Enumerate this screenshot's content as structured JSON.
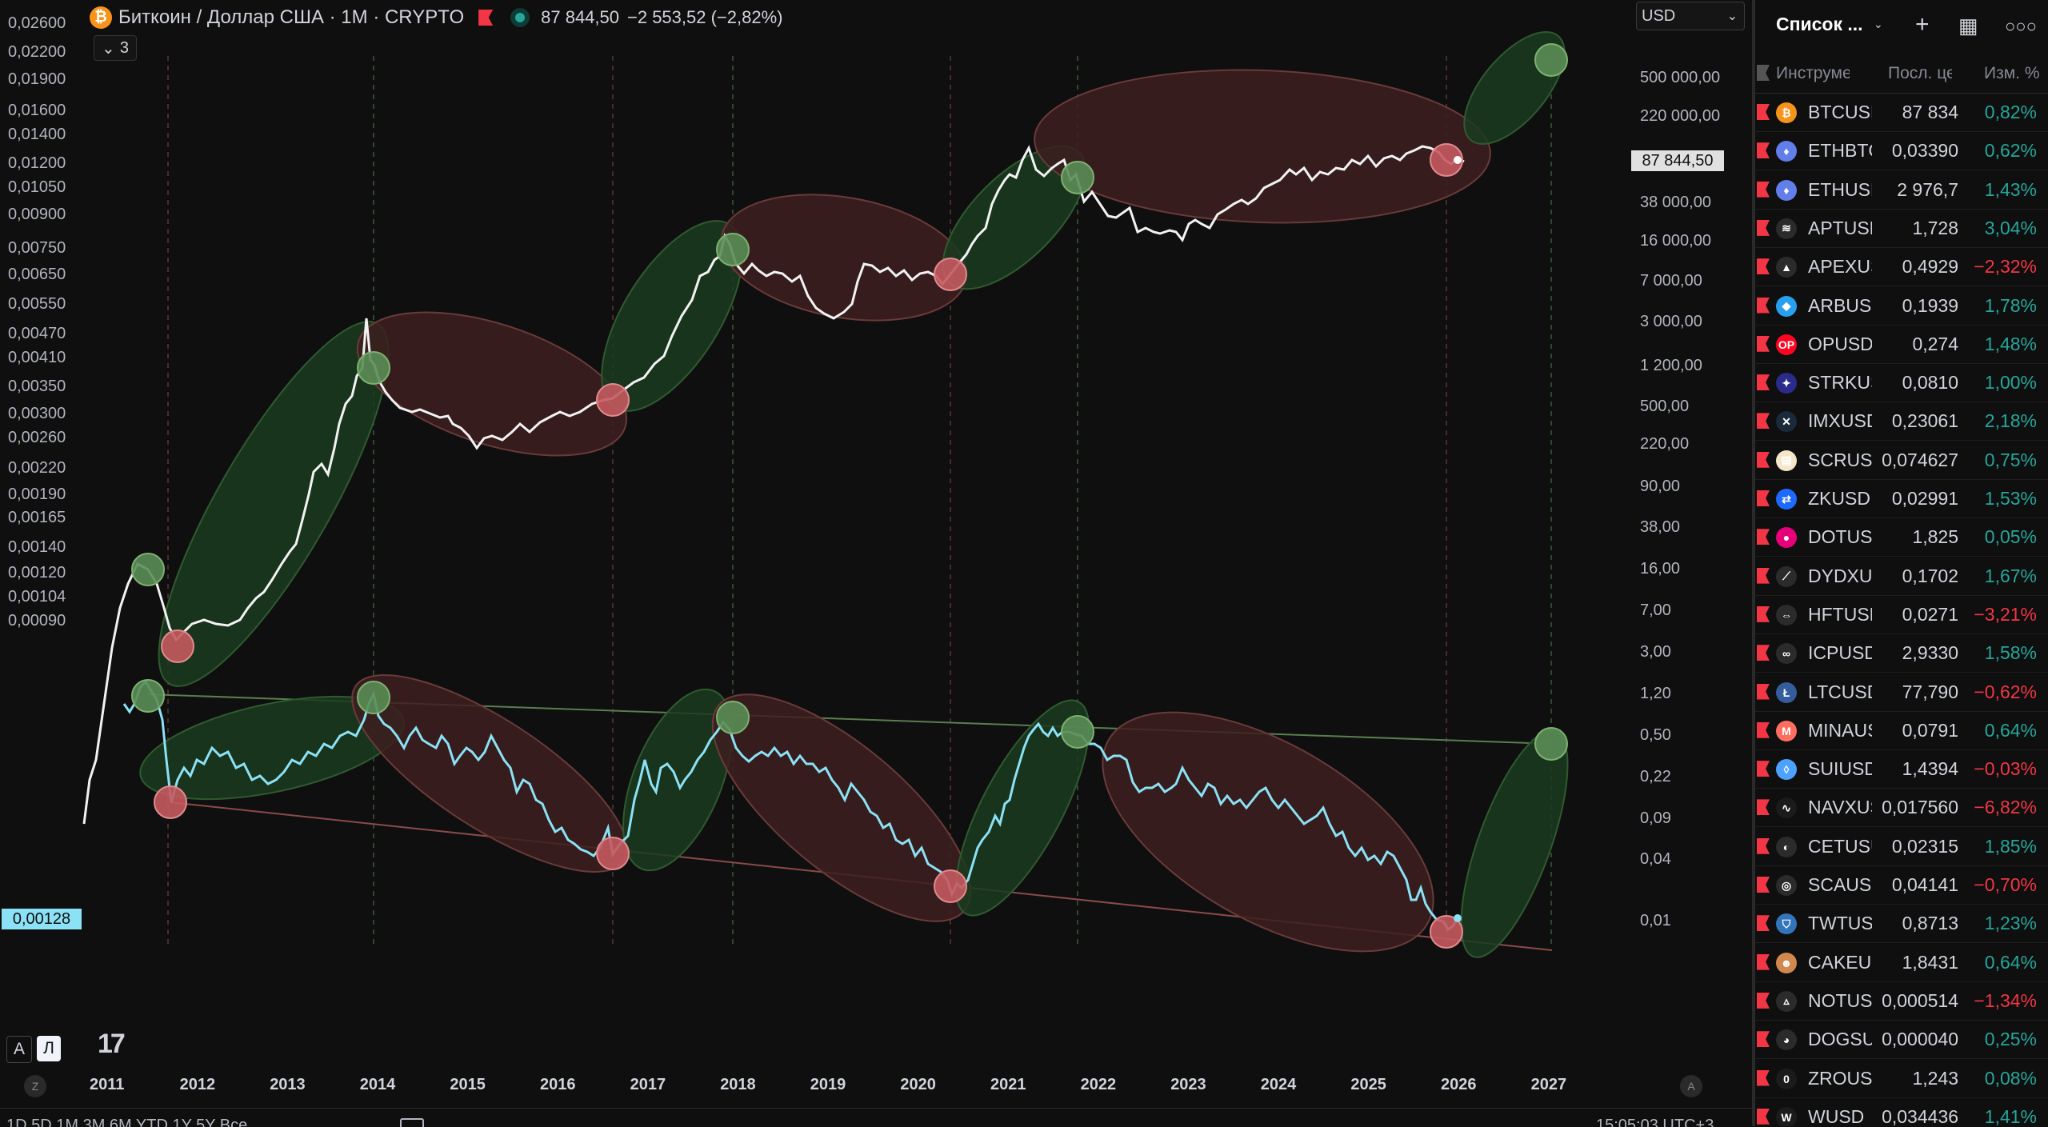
{
  "header": {
    "symbol_title": "Биткоин / Доллар США · 1M · CRYPTO",
    "price": "87 844,50",
    "change": "−2 553,52 (−2,82%)",
    "collapse_count": "3",
    "currency_select": "USD"
  },
  "left_axis": {
    "labels": [
      "0,02600",
      "0,02200",
      "0,01900",
      "0,01600",
      "0,01400",
      "0,01200",
      "0,01050",
      "0,00900",
      "0,00750",
      "0,00650",
      "0,00550",
      "0,00470",
      "0,00410",
      "0,00350",
      "0,00300",
      "0,00260",
      "0,00220",
      "0,00190",
      "0,00165",
      "0,00140",
      "0,00120",
      "0,00104",
      "0,00090"
    ],
    "current_value": "0,00128",
    "current_color": "#8be1f5"
  },
  "right_axis": {
    "labels": [
      "500 000,00",
      "220 000,00",
      "38 000,00",
      "16 000,00",
      "7 000,00",
      "3 000,00",
      "1 200,00",
      "500,00",
      "220,00",
      "90,00",
      "38,00",
      "16,00",
      "7,00",
      "3,00",
      "1,20",
      "0,50",
      "0,22",
      "0,09",
      "0,04",
      "0,01"
    ],
    "current_value": "87 844,50"
  },
  "x_axis": {
    "labels": [
      "2011",
      "2012",
      "2013",
      "2014",
      "2015",
      "2016",
      "2017",
      "2018",
      "2019",
      "2020",
      "2021",
      "2022",
      "2023",
      "2024",
      "2025",
      "2026",
      "2027"
    ]
  },
  "mode_buttons": {
    "auto": "A",
    "log": "Л"
  },
  "scroll_buttons": {
    "left": "Z",
    "right": "A"
  },
  "bottom_toolbar": {
    "left_text": "1D  5D  1M  3M  6M  YTD  1Y  5Y  Все",
    "right_text": "15:05:03 UTC+3"
  },
  "colors": {
    "upper_line": "#f2f2f2",
    "lower_line": "#8be1f5",
    "green_fill": "#1b3b1f",
    "red_fill": "#3d1f1f",
    "green_marker": "#5a8d55",
    "red_marker": "#c45a5f",
    "up": "#26a69a",
    "down": "#f23645"
  },
  "watchlist": {
    "title": "Список ...",
    "col_symbol": "Инструмент",
    "col_last": "Посл. цена",
    "col_change": "Изм. %",
    "rows": [
      {
        "sym": "BTCUSD",
        "last": "87 834",
        "chg": "0,82%",
        "dir": "up",
        "logo_color": "#f7931a",
        "logo_glyph": "₿"
      },
      {
        "sym": "ETHBTC",
        "last": "0,03390",
        "chg": "0,62%",
        "dir": "up",
        "logo_color": "#627eea",
        "logo_glyph": "♦"
      },
      {
        "sym": "ETHUSD",
        "last": "2 976,7",
        "chg": "1,43%",
        "dir": "up",
        "logo_color": "#627eea",
        "logo_glyph": "♦"
      },
      {
        "sym": "APTUSD",
        "last": "1,728",
        "chg": "3,04%",
        "dir": "up",
        "logo_color": "#2b2b2b",
        "logo_glyph": "≋"
      },
      {
        "sym": "APEXUSD",
        "last": "0,4929",
        "chg": "−2,32%",
        "dir": "down",
        "logo_color": "#2b2b2b",
        "logo_glyph": "▲"
      },
      {
        "sym": "ARBUSD",
        "last": "0,1939",
        "chg": "1,78%",
        "dir": "up",
        "logo_color": "#28a0f0",
        "logo_glyph": "◆"
      },
      {
        "sym": "OPUSD",
        "last": "0,274",
        "chg": "1,48%",
        "dir": "up",
        "logo_color": "#ff0420",
        "logo_glyph": "OP"
      },
      {
        "sym": "STRKUSD",
        "last": "0,0810",
        "chg": "1,00%",
        "dir": "up",
        "logo_color": "#2b2b8b",
        "logo_glyph": "✦"
      },
      {
        "sym": "IMXUSD",
        "last": "0,23061",
        "chg": "2,18%",
        "dir": "up",
        "logo_color": "#1a2a3a",
        "logo_glyph": "✕"
      },
      {
        "sym": "SCRUSD",
        "last": "0,074627",
        "chg": "0,75%",
        "dir": "up",
        "logo_color": "#f5e6c8",
        "logo_glyph": "▤"
      },
      {
        "sym": "ZKUSD",
        "last": "0,02991",
        "chg": "1,53%",
        "dir": "up",
        "logo_color": "#1e69ff",
        "logo_glyph": "⇄"
      },
      {
        "sym": "DOTUSD",
        "last": "1,825",
        "chg": "0,05%",
        "dir": "up",
        "logo_color": "#e6007a",
        "logo_glyph": "●"
      },
      {
        "sym": "DYDXUSD",
        "last": "0,1702",
        "chg": "1,67%",
        "dir": "up",
        "logo_color": "#2b2b2b",
        "logo_glyph": "⟋"
      },
      {
        "sym": "HFTUSD",
        "last": "0,0271",
        "chg": "−3,21%",
        "dir": "down",
        "logo_color": "#2b2b2b",
        "logo_glyph": "⇔"
      },
      {
        "sym": "ICPUSD",
        "last": "2,9330",
        "chg": "1,58%",
        "dir": "up",
        "logo_color": "#2b2b2b",
        "logo_glyph": "∞"
      },
      {
        "sym": "LTCUSD",
        "last": "77,790",
        "chg": "−0,62%",
        "dir": "down",
        "logo_color": "#345d9d",
        "logo_glyph": "Ł"
      },
      {
        "sym": "MINAUSD",
        "last": "0,0791",
        "chg": "0,64%",
        "dir": "up",
        "logo_color": "#ff6f61",
        "logo_glyph": "M"
      },
      {
        "sym": "SUIUSD",
        "last": "1,4394",
        "chg": "−0,03%",
        "dir": "down",
        "logo_color": "#4da2ff",
        "logo_glyph": "◊"
      },
      {
        "sym": "NAVXUSD",
        "last": "0,017560",
        "chg": "−6,82%",
        "dir": "down",
        "logo_color": "#1b1b1b",
        "logo_glyph": "∿"
      },
      {
        "sym": "CETUSUSD",
        "last": "0,02315",
        "chg": "1,85%",
        "dir": "up",
        "logo_color": "#2b2b2b",
        "logo_glyph": "◐"
      },
      {
        "sym": "SCAUSD",
        "last": "0,04141",
        "chg": "−0,70%",
        "dir": "down",
        "logo_color": "#2b2b2b",
        "logo_glyph": "◎"
      },
      {
        "sym": "TWTUSD",
        "last": "0,8713",
        "chg": "1,23%",
        "dir": "up",
        "logo_color": "#3375bb",
        "logo_glyph": "⛉"
      },
      {
        "sym": "CAKEUSD",
        "last": "1,8431",
        "chg": "0,64%",
        "dir": "up",
        "logo_color": "#d1884f",
        "logo_glyph": "☻"
      },
      {
        "sym": "NOTUSD",
        "last": "0,000514",
        "chg": "−1,34%",
        "dir": "down",
        "logo_color": "#2b2b2b",
        "logo_glyph": "▵"
      },
      {
        "sym": "DOGSUSD",
        "last": "0,000040",
        "chg": "0,25%",
        "dir": "up",
        "logo_color": "#2b2b2b",
        "logo_glyph": "◕"
      },
      {
        "sym": "ZROUSD",
        "last": "1,243",
        "chg": "0,08%",
        "dir": "up",
        "logo_color": "#1b1b1b",
        "logo_glyph": "0"
      },
      {
        "sym": "WUSD",
        "last": "0,034436",
        "chg": "1,41%",
        "dir": "up",
        "logo_color": "#1b1b1b",
        "logo_glyph": "W"
      }
    ]
  }
}
